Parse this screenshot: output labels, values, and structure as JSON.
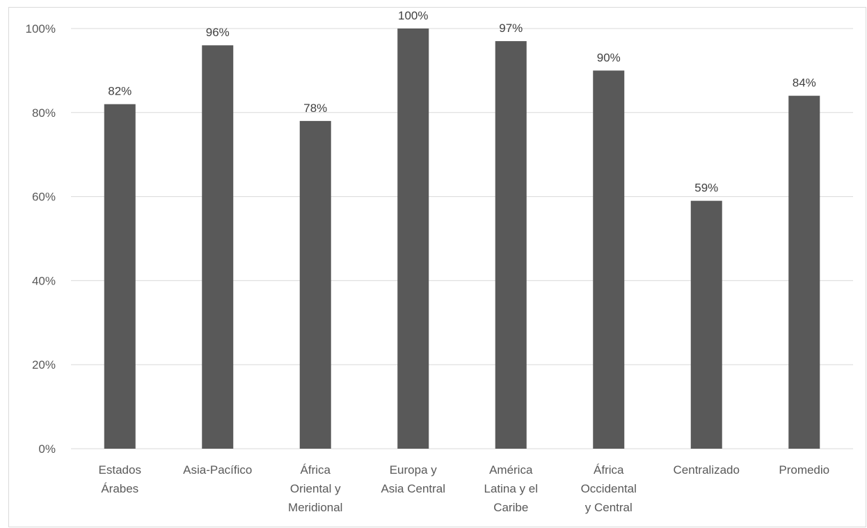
{
  "chart_data": {
    "type": "bar",
    "categories": [
      [
        "Estados",
        "Árabes"
      ],
      [
        "Asia-Pacífico"
      ],
      [
        "África",
        "Oriental y",
        "Meridional"
      ],
      [
        "Europa y",
        "Asia Central"
      ],
      [
        "América",
        "Latina y el",
        "Caribe"
      ],
      [
        "África",
        "Occidental",
        "y Central"
      ],
      [
        "Centralizado"
      ],
      [
        "Promedio"
      ]
    ],
    "values": [
      82,
      96,
      78,
      100,
      97,
      90,
      59,
      84
    ],
    "data_labels": [
      "82%",
      "96%",
      "78%",
      "100%",
      "97%",
      "90%",
      "59%",
      "84%"
    ],
    "ylim": [
      0,
      100
    ],
    "yticks": [
      0,
      20,
      40,
      60,
      80,
      100
    ],
    "ytick_labels": [
      "0%",
      "20%",
      "40%",
      "60%",
      "80%",
      "100%"
    ],
    "grid": true,
    "bar_color": "#595959"
  }
}
